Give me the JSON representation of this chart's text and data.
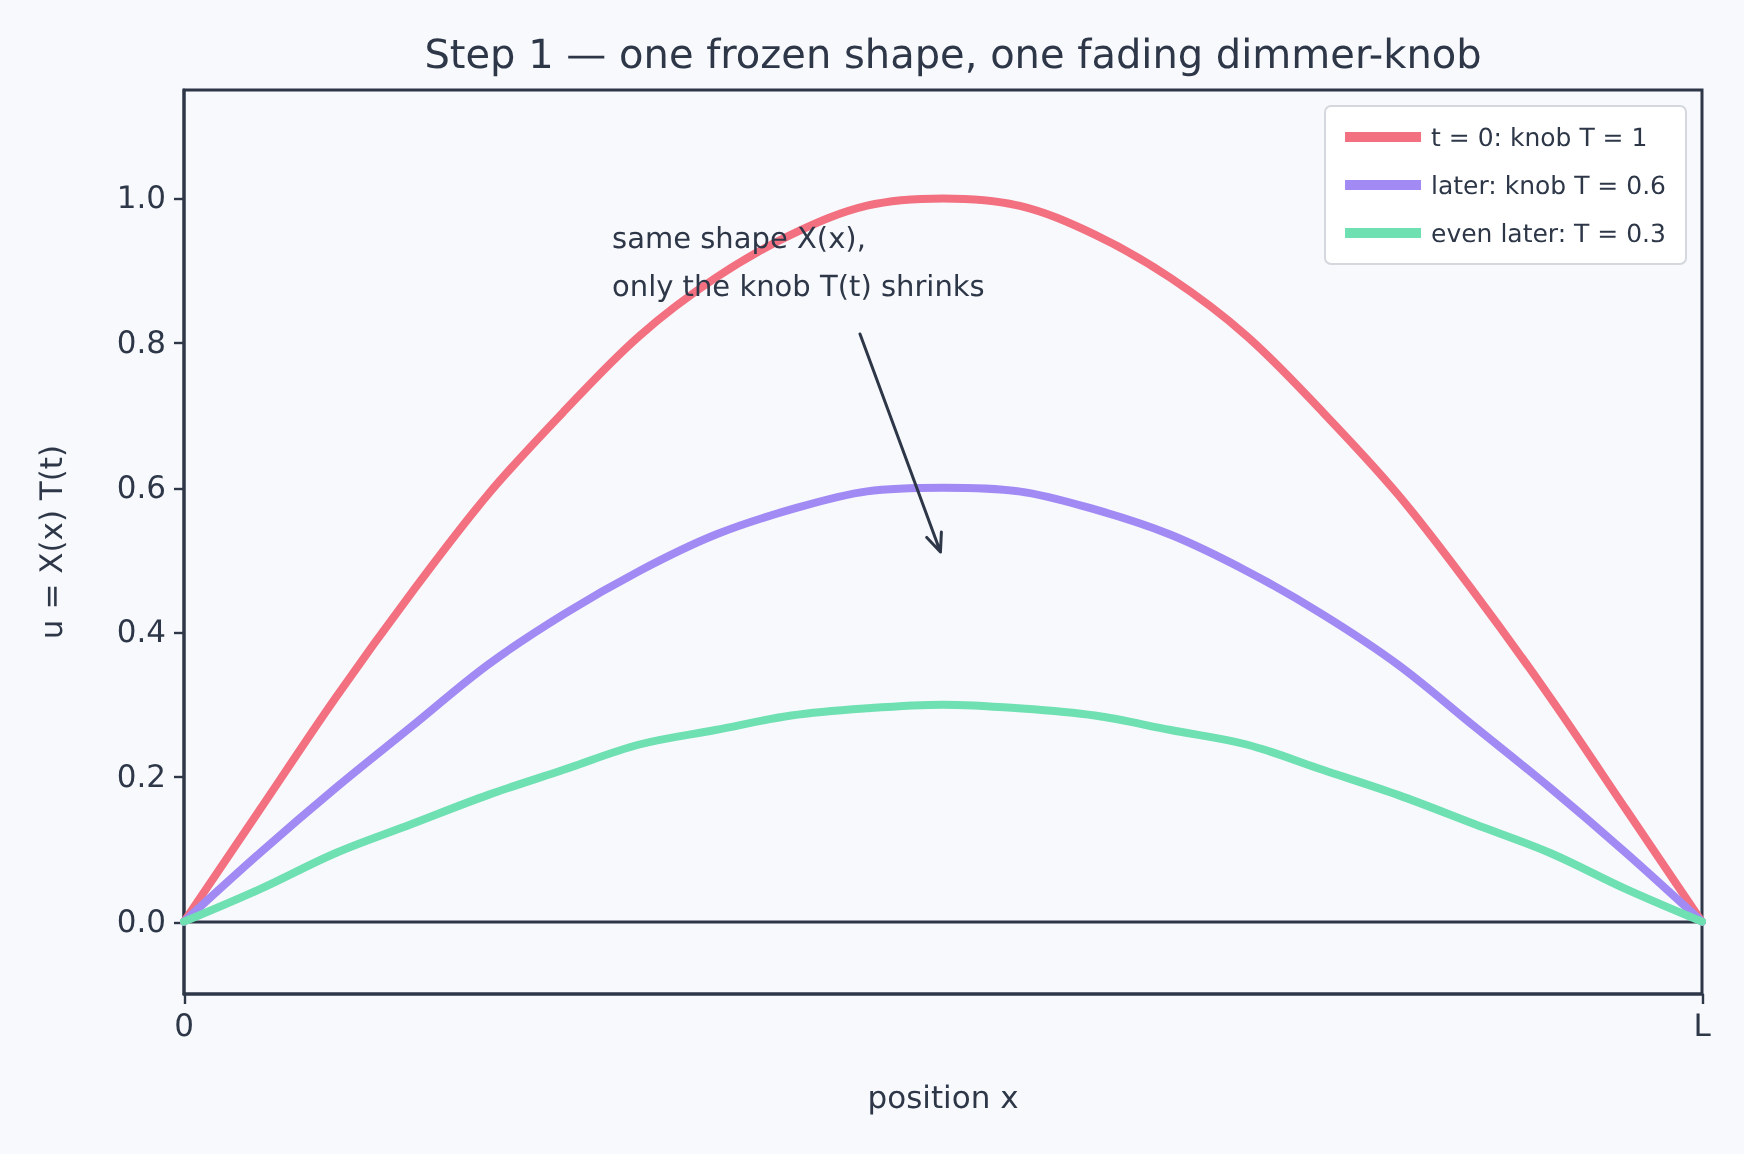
{
  "chart_data": {
    "type": "line",
    "title": "Step 1 — one frozen shape, one fading dimmer-knob",
    "xlabel": "position x",
    "ylabel": "u = X(x) T(t)",
    "categories": [
      "0",
      null,
      null,
      null,
      null,
      null,
      null,
      null,
      null,
      null,
      null,
      null,
      null,
      null,
      null,
      null,
      null,
      null,
      null,
      null,
      "L"
    ],
    "series": [
      {
        "name": "t = 0: knob T = 1",
        "color": "#f2707f",
        "values": [
          0,
          0.155,
          0.31,
          0.455,
          0.59,
          0.705,
          0.81,
          0.89,
          0.95,
          0.99,
          1.0,
          0.99,
          0.95,
          0.89,
          0.81,
          0.705,
          0.59,
          0.455,
          0.31,
          0.155,
          0
        ]
      },
      {
        "name": "later: knob T = 0.6",
        "color": "#a18af4",
        "values": [
          0,
          0.095,
          0.185,
          0.27,
          0.355,
          0.425,
          0.485,
          0.535,
          0.57,
          0.595,
          0.6,
          0.595,
          0.57,
          0.535,
          0.485,
          0.425,
          0.355,
          0.27,
          0.185,
          0.095,
          0
        ]
      },
      {
        "name": "even later: T = 0.3",
        "color": "#6ee0b2",
        "values": [
          0,
          0.045,
          0.095,
          0.135,
          0.175,
          0.21,
          0.245,
          0.265,
          0.285,
          0.295,
          0.3,
          0.295,
          0.285,
          0.265,
          0.245,
          0.21,
          0.175,
          0.135,
          0.095,
          0.045,
          0
        ]
      }
    ],
    "ylim": [
      -0.1,
      1.15
    ],
    "yticks": [
      {
        "value": 0,
        "label": "0.0"
      },
      {
        "value": 0.2,
        "label": "0.2"
      },
      {
        "value": 0.4,
        "label": "0.4"
      },
      {
        "value": 0.6,
        "label": "0.6"
      },
      {
        "value": 0.8,
        "label": "0.8"
      },
      {
        "value": 1,
        "label": "1.0"
      }
    ],
    "ref_lines": [
      {
        "axis": "y",
        "value": 0,
        "color": "#2d3748"
      }
    ],
    "annotations": [
      "same shape X(x),\nonly the knob T(t) shrinks"
    ],
    "legend": "top right",
    "marker": "none",
    "line_style": "solid"
  }
}
